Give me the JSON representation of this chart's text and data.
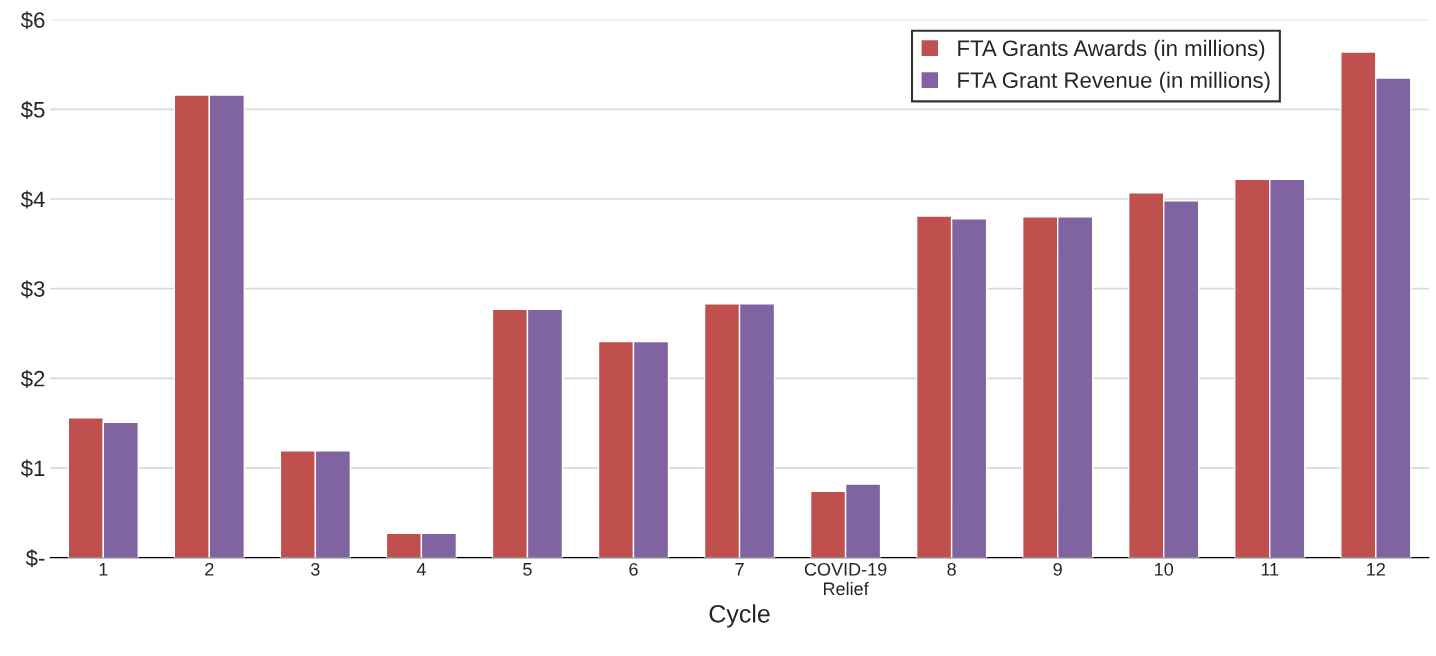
{
  "chart_data": {
    "type": "bar",
    "xlabel": "Cycle",
    "categories": [
      "1",
      "2",
      "3",
      "4",
      "5",
      "6",
      "7",
      "COVID-19\nRelief",
      "8",
      "9",
      "10",
      "11",
      "12"
    ],
    "series": [
      {
        "name": "FTA Grants Awards (in millions)",
        "color": "#c0504d",
        "values": [
          1.56,
          5.16,
          1.19,
          0.27,
          2.77,
          2.41,
          2.83,
          0.74,
          3.81,
          3.8,
          4.07,
          4.22,
          5.64
        ]
      },
      {
        "name": "FTA Grant Revenue (in millions)",
        "color": "#8064a2",
        "values": [
          1.51,
          5.16,
          1.19,
          0.27,
          2.77,
          2.41,
          2.83,
          0.82,
          3.78,
          3.8,
          3.98,
          4.22,
          5.35
        ]
      }
    ],
    "ylim": [
      0,
      6
    ],
    "yticks": [
      {
        "value": 0,
        "label": "$-"
      },
      {
        "value": 1,
        "label": "$1"
      },
      {
        "value": 2,
        "label": "$2"
      },
      {
        "value": 3,
        "label": "$3"
      },
      {
        "value": 4,
        "label": "$4"
      },
      {
        "value": 5,
        "label": "$5"
      },
      {
        "value": 6,
        "label": "$6"
      }
    ],
    "grid": "y",
    "legend": "top right"
  }
}
